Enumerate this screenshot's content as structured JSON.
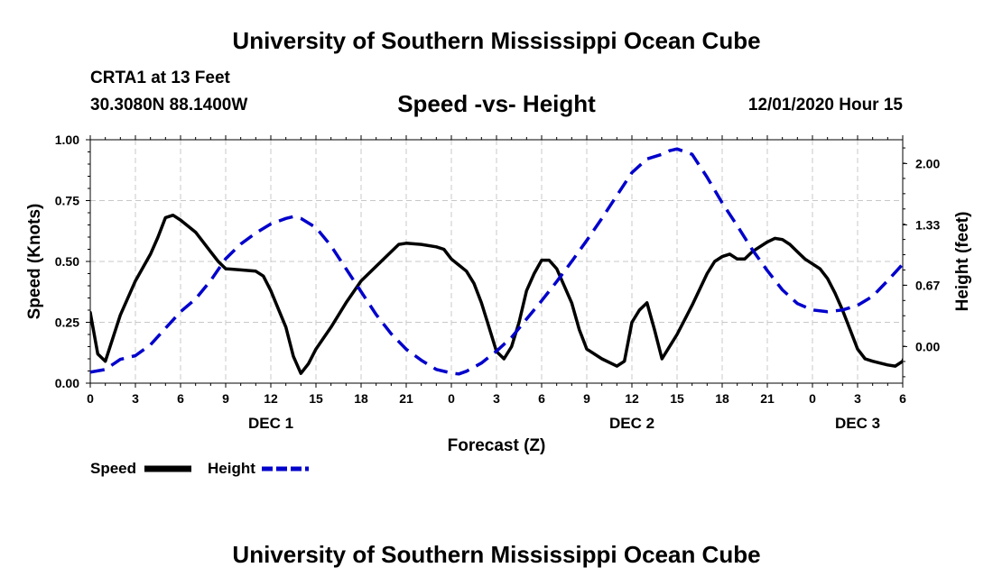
{
  "header": {
    "title": "University of Southern Mississippi Ocean Cube",
    "station": "CRTA1 at 13 Feet",
    "coordinates": "30.3080N 88.1400W",
    "chart_title": "Speed -vs- Height",
    "datetime": "12/01/2020 Hour 15"
  },
  "footer": {
    "title": "University of Southern Mississippi Ocean Cube"
  },
  "colors": {
    "speed": "#000000",
    "height": "#0000cc",
    "grid": "#c8c8c8"
  },
  "chart_data": {
    "type": "line",
    "title": "Speed -vs- Height",
    "xlabel": "Forecast (Z)",
    "ylabel": "Speed (Knots)",
    "y2label": "Height (feet)",
    "xlim": [
      0,
      54
    ],
    "ylim": [
      0,
      1
    ],
    "y2lim": [
      -0.4,
      2.26
    ],
    "grid": true,
    "x_ticks": [
      0,
      3,
      6,
      9,
      12,
      15,
      18,
      21,
      24,
      27,
      30,
      33,
      36,
      39,
      42,
      45,
      48,
      51,
      54
    ],
    "x_tick_labels": [
      "0",
      "3",
      "6",
      "9",
      "12",
      "15",
      "18",
      "21",
      "0",
      "3",
      "6",
      "9",
      "12",
      "15",
      "18",
      "21",
      "0",
      "3",
      "6"
    ],
    "day_labels": [
      {
        "label": "DEC 1",
        "x": 12
      },
      {
        "label": "DEC 2",
        "x": 36
      },
      {
        "label": "DEC 3",
        "x": 51
      }
    ],
    "y_ticks": [
      0,
      0.25,
      0.5,
      0.75,
      1.0
    ],
    "y_tick_labels": [
      "0.00",
      "0.25",
      "0.50",
      "0.75",
      "1.00"
    ],
    "y2_ticks": [
      0,
      0.67,
      1.33,
      2.0
    ],
    "y2_tick_labels": [
      "0.00",
      "0.67",
      "1.33",
      "2.00"
    ],
    "legend": [
      {
        "name": "Speed",
        "style": "solid"
      },
      {
        "name": "Height",
        "style": "dashed"
      }
    ],
    "legend_position": "bottom-left",
    "series": [
      {
        "name": "Speed",
        "axis": "left",
        "points": [
          [
            0,
            0.29
          ],
          [
            0.5,
            0.12
          ],
          [
            1,
            0.09
          ],
          [
            2,
            0.28
          ],
          [
            3,
            0.42
          ],
          [
            4,
            0.53
          ],
          [
            4.5,
            0.6
          ],
          [
            5,
            0.68
          ],
          [
            5.5,
            0.69
          ],
          [
            6,
            0.67
          ],
          [
            7,
            0.62
          ],
          [
            8,
            0.54
          ],
          [
            8.5,
            0.5
          ],
          [
            9,
            0.47
          ],
          [
            10,
            0.465
          ],
          [
            11,
            0.46
          ],
          [
            11.5,
            0.44
          ],
          [
            12,
            0.38
          ],
          [
            13,
            0.23
          ],
          [
            13.5,
            0.11
          ],
          [
            14,
            0.04
          ],
          [
            14.5,
            0.08
          ],
          [
            15,
            0.14
          ],
          [
            16,
            0.23
          ],
          [
            17,
            0.33
          ],
          [
            18,
            0.42
          ],
          [
            19,
            0.48
          ],
          [
            20,
            0.54
          ],
          [
            20.5,
            0.57
          ],
          [
            21,
            0.575
          ],
          [
            22,
            0.57
          ],
          [
            23,
            0.56
          ],
          [
            23.5,
            0.55
          ],
          [
            24,
            0.51
          ],
          [
            25,
            0.46
          ],
          [
            25.5,
            0.41
          ],
          [
            26,
            0.33
          ],
          [
            26.5,
            0.23
          ],
          [
            27,
            0.13
          ],
          [
            27.5,
            0.1
          ],
          [
            28,
            0.15
          ],
          [
            28.5,
            0.25
          ],
          [
            29,
            0.38
          ],
          [
            29.5,
            0.45
          ],
          [
            30,
            0.505
          ],
          [
            30.5,
            0.505
          ],
          [
            31,
            0.47
          ],
          [
            32,
            0.33
          ],
          [
            32.5,
            0.22
          ],
          [
            33,
            0.14
          ],
          [
            34,
            0.1
          ],
          [
            35,
            0.07
          ],
          [
            35.5,
            0.09
          ],
          [
            36,
            0.25
          ],
          [
            36.5,
            0.3
          ],
          [
            37,
            0.33
          ],
          [
            37.5,
            0.22
          ],
          [
            38,
            0.1
          ],
          [
            39,
            0.2
          ],
          [
            40,
            0.32
          ],
          [
            41,
            0.45
          ],
          [
            41.5,
            0.5
          ],
          [
            42,
            0.52
          ],
          [
            42.5,
            0.53
          ],
          [
            43,
            0.51
          ],
          [
            43.5,
            0.51
          ],
          [
            44,
            0.54
          ],
          [
            45,
            0.58
          ],
          [
            45.5,
            0.595
          ],
          [
            46,
            0.59
          ],
          [
            46.5,
            0.57
          ],
          [
            47,
            0.54
          ],
          [
            47.5,
            0.51
          ],
          [
            48,
            0.49
          ],
          [
            48.5,
            0.47
          ],
          [
            49,
            0.43
          ],
          [
            49.5,
            0.37
          ],
          [
            50,
            0.3
          ],
          [
            50.5,
            0.22
          ],
          [
            51,
            0.14
          ],
          [
            51.5,
            0.1
          ],
          [
            52,
            0.09
          ],
          [
            53,
            0.075
          ],
          [
            53.5,
            0.07
          ],
          [
            54,
            0.09
          ],
          [
            54.3,
            0.14
          ]
        ]
      },
      {
        "name": "Height",
        "axis": "right",
        "points": [
          [
            0,
            -0.28
          ],
          [
            1,
            -0.25
          ],
          [
            2,
            -0.14
          ],
          [
            3,
            -0.1
          ],
          [
            4,
            0.02
          ],
          [
            5,
            0.2
          ],
          [
            6,
            0.38
          ],
          [
            7,
            0.52
          ],
          [
            8,
            0.72
          ],
          [
            9,
            0.96
          ],
          [
            10,
            1.12
          ],
          [
            11,
            1.24
          ],
          [
            12,
            1.34
          ],
          [
            13,
            1.4
          ],
          [
            13.5,
            1.42
          ],
          [
            14,
            1.4
          ],
          [
            15,
            1.3
          ],
          [
            16,
            1.1
          ],
          [
            17,
            0.85
          ],
          [
            18,
            0.6
          ],
          [
            19,
            0.35
          ],
          [
            20,
            0.14
          ],
          [
            21,
            -0.03
          ],
          [
            22,
            -0.15
          ],
          [
            23,
            -0.25
          ],
          [
            24,
            -0.29
          ],
          [
            24.5,
            -0.3
          ],
          [
            25,
            -0.27
          ],
          [
            26,
            -0.18
          ],
          [
            27,
            -0.05
          ],
          [
            28,
            0.1
          ],
          [
            29,
            0.3
          ],
          [
            30,
            0.5
          ],
          [
            31,
            0.71
          ],
          [
            32,
            0.93
          ],
          [
            33,
            1.16
          ],
          [
            34,
            1.4
          ],
          [
            35,
            1.65
          ],
          [
            36,
            1.9
          ],
          [
            37,
            2.05
          ],
          [
            38,
            2.1
          ],
          [
            38.5,
            2.14
          ],
          [
            39,
            2.16
          ],
          [
            40,
            2.1
          ],
          [
            41,
            1.85
          ],
          [
            42,
            1.57
          ],
          [
            43,
            1.32
          ],
          [
            44,
            1.06
          ],
          [
            45,
            0.83
          ],
          [
            46,
            0.62
          ],
          [
            47,
            0.47
          ],
          [
            48,
            0.4
          ],
          [
            49,
            0.38
          ],
          [
            50,
            0.4
          ],
          [
            51,
            0.45
          ],
          [
            52,
            0.55
          ],
          [
            53,
            0.72
          ],
          [
            54,
            0.9
          ],
          [
            54.3,
            0.98
          ]
        ]
      }
    ]
  }
}
